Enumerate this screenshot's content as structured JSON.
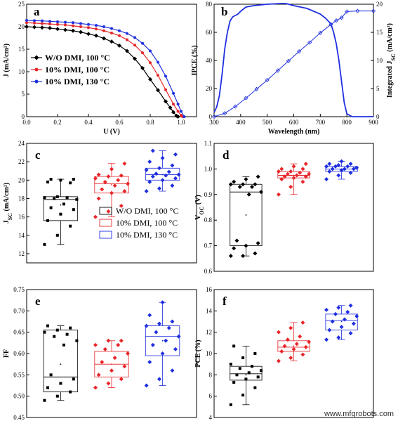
{
  "watermark": "www.mfgrobots.com",
  "colors": {
    "black": "#000000",
    "red": "#e8262a",
    "blue": "#1f2fe0"
  },
  "chart_data": [
    {
      "id": "a",
      "type": "line",
      "panel_label": "a",
      "xlabel": "U (V)",
      "ylabel": "J (mA/cm²)",
      "xlim": [
        0.0,
        1.1
      ],
      "ylim": [
        0,
        25
      ],
      "xticks": [
        "0.0",
        "0.2",
        "0.4",
        "0.6",
        "0.8",
        "1.0"
      ],
      "yticks": [
        "0",
        "5",
        "10",
        "15",
        "20",
        "25"
      ],
      "legend_position": "center-left",
      "series": [
        {
          "name": "W/O DMI, 100 °C",
          "color": "#000000",
          "x": [
            0.0,
            0.05,
            0.1,
            0.15,
            0.2,
            0.25,
            0.3,
            0.35,
            0.4,
            0.45,
            0.5,
            0.55,
            0.6,
            0.65,
            0.7,
            0.75,
            0.8,
            0.85,
            0.9,
            0.93,
            0.95,
            0.97,
            0.98
          ],
          "y": [
            20.0,
            19.9,
            19.8,
            19.7,
            19.5,
            19.3,
            19.1,
            18.8,
            18.4,
            18.0,
            17.4,
            16.7,
            15.8,
            14.6,
            12.9,
            10.8,
            8.3,
            5.9,
            3.4,
            2.0,
            1.0,
            0.2,
            0.0
          ]
        },
        {
          "name": "10% DMI, 100 °C",
          "color": "#e8262a",
          "x": [
            0.0,
            0.05,
            0.1,
            0.15,
            0.2,
            0.25,
            0.3,
            0.35,
            0.4,
            0.45,
            0.5,
            0.55,
            0.6,
            0.65,
            0.7,
            0.75,
            0.8,
            0.85,
            0.9,
            0.95,
            0.98,
            1.0,
            1.01
          ],
          "y": [
            20.9,
            20.8,
            20.7,
            20.6,
            20.5,
            20.4,
            20.2,
            20.0,
            19.8,
            19.5,
            19.1,
            18.6,
            18.0,
            17.1,
            15.9,
            14.2,
            12.0,
            9.2,
            6.0,
            2.8,
            1.2,
            0.3,
            0.0
          ]
        },
        {
          "name": "10% DMI, 130 °C",
          "color": "#1f2fe0",
          "x": [
            0.0,
            0.05,
            0.1,
            0.15,
            0.2,
            0.25,
            0.3,
            0.35,
            0.4,
            0.45,
            0.5,
            0.55,
            0.6,
            0.65,
            0.7,
            0.75,
            0.8,
            0.85,
            0.9,
            0.95,
            0.98,
            1.0,
            1.02
          ],
          "y": [
            21.4,
            21.35,
            21.3,
            21.2,
            21.1,
            21.0,
            20.9,
            20.7,
            20.5,
            20.3,
            20.0,
            19.6,
            19.1,
            18.5,
            17.6,
            16.3,
            14.6,
            12.1,
            9.0,
            5.2,
            2.8,
            1.2,
            0.0
          ]
        }
      ]
    },
    {
      "id": "b",
      "type": "line",
      "panel_label": "b",
      "xlabel": "Wavelength (nm)",
      "ylabel": "IPCE (%)",
      "ylabel_right": "Integrated J_SC (mA/cm²)",
      "xlim": [
        300,
        900
      ],
      "ylim": [
        0,
        80
      ],
      "ylim_right": [
        0,
        20
      ],
      "xticks": [
        "300",
        "400",
        "500",
        "600",
        "700",
        "800",
        "900"
      ],
      "yticks": [
        "0",
        "20",
        "40",
        "60",
        "80"
      ],
      "yticks_right": [
        "0",
        "5",
        "10",
        "15",
        "20"
      ],
      "series": [
        {
          "name": "IPCE",
          "color": "#1f2fe0",
          "x": [
            300,
            310,
            320,
            330,
            340,
            350,
            360,
            370,
            380,
            390,
            400,
            420,
            450,
            500,
            550,
            570,
            600,
            650,
            700,
            720,
            740,
            750,
            760,
            770,
            780,
            790,
            800,
            820,
            850,
            900
          ],
          "y": [
            3,
            7,
            15,
            30,
            48,
            60,
            68,
            71,
            72,
            73,
            75,
            78,
            79,
            80,
            80.5,
            80.5,
            79,
            77,
            73,
            70,
            66,
            60,
            52,
            40,
            25,
            10,
            2,
            0,
            0,
            0
          ]
        },
        {
          "name": "Integrated J_SC",
          "color": "#1f2fe0",
          "axis": "right",
          "marker": "diamond",
          "x": [
            300,
            340,
            380,
            420,
            460,
            500,
            540,
            580,
            620,
            660,
            700,
            740,
            760,
            780,
            800,
            840,
            900
          ],
          "y": [
            0,
            0.6,
            1.8,
            3.3,
            4.9,
            6.5,
            8.2,
            9.9,
            11.6,
            13.2,
            14.9,
            16.4,
            17.1,
            17.6,
            18.7,
            18.8,
            18.8
          ]
        }
      ]
    },
    {
      "id": "c",
      "type": "box",
      "panel_label": "c",
      "ylabel": "J_SC (mA/cm²)",
      "ylim": [
        11,
        24
      ],
      "yticks": [
        "12",
        "14",
        "16",
        "18",
        "20",
        "22",
        "24"
      ],
      "legend": [
        "W/O DMI, 100 °C",
        "10% DMI, 100 °C",
        "10% DMI, 130 °C"
      ],
      "groups": [
        {
          "color": "#000000",
          "q1": 15.6,
          "median": 17.9,
          "q3": 18.2,
          "whisker_low": 13.0,
          "whisker_high": 20.1,
          "mean": 17.3,
          "points": [
            13.0,
            14.0,
            15.0,
            15.6,
            16.3,
            16.8,
            17.0,
            17.4,
            17.9,
            18.0,
            18.1,
            18.1,
            18.2,
            19.7,
            19.8,
            20.0,
            20.1,
            20.1
          ]
        },
        {
          "color": "#e8262a",
          "q1": 18.6,
          "median": 19.6,
          "q3": 20.4,
          "whisker_low": 16.0,
          "whisker_high": 21.8,
          "mean": 19.5,
          "points": [
            16.0,
            16.6,
            17.2,
            18.0,
            18.6,
            18.8,
            19.0,
            19.4,
            19.6,
            19.8,
            20.0,
            20.2,
            20.4,
            20.5,
            20.6,
            21.2,
            21.8
          ]
        },
        {
          "color": "#1f2fe0",
          "q1": 20.0,
          "median": 20.6,
          "q3": 21.3,
          "whisker_low": 18.8,
          "whisker_high": 23.2,
          "mean": 20.6,
          "points": [
            18.8,
            19.1,
            19.4,
            19.8,
            20.0,
            20.2,
            20.4,
            20.5,
            20.6,
            20.7,
            20.9,
            21.1,
            21.3,
            21.6,
            22.0,
            22.4,
            22.8,
            23.2
          ]
        }
      ]
    },
    {
      "id": "d",
      "type": "box",
      "panel_label": "d",
      "ylabel": "V_OC (V)",
      "ylim": [
        0.6,
        1.1
      ],
      "yticks": [
        "0.6",
        "0.7",
        "0.8",
        "0.9",
        "1.0",
        "1.1"
      ],
      "groups": [
        {
          "color": "#000000",
          "q1": 0.7,
          "median": 0.91,
          "q3": 0.94,
          "whisker_low": 0.66,
          "whisker_high": 0.97,
          "mean": 0.82,
          "points": [
            0.66,
            0.66,
            0.67,
            0.69,
            0.7,
            0.71,
            0.72,
            0.9,
            0.91,
            0.93,
            0.93,
            0.94,
            0.94,
            0.94,
            0.95,
            0.96,
            0.97
          ]
        },
        {
          "color": "#e8262a",
          "q1": 0.965,
          "median": 0.975,
          "q3": 0.99,
          "whisker_low": 0.9,
          "whisker_high": 1.02,
          "mean": 0.975,
          "points": [
            0.9,
            0.93,
            0.95,
            0.96,
            0.965,
            0.97,
            0.97,
            0.975,
            0.98,
            0.98,
            0.985,
            0.99,
            0.99,
            1.0,
            1.0,
            1.01,
            1.02
          ]
        },
        {
          "color": "#1f2fe0",
          "q1": 0.99,
          "median": 1.0,
          "q3": 1.01,
          "whisker_low": 0.96,
          "whisker_high": 1.03,
          "mean": 1.0,
          "points": [
            0.96,
            0.975,
            0.985,
            0.99,
            0.995,
            1.0,
            1.0,
            1.0,
            1.005,
            1.01,
            1.01,
            1.01,
            1.015,
            1.02,
            1.02,
            1.03
          ]
        }
      ]
    },
    {
      "id": "e",
      "type": "box",
      "panel_label": "e",
      "ylabel": "FF",
      "ylim": [
        0.45,
        0.75
      ],
      "yticks": [
        "0.45",
        "0.50",
        "0.55",
        "0.60",
        "0.65",
        "0.70",
        "0.75"
      ],
      "groups": [
        {
          "color": "#000000",
          "q1": 0.51,
          "median": 0.545,
          "q3": 0.655,
          "whisker_low": 0.49,
          "whisker_high": 0.665,
          "mean": 0.575,
          "points": [
            0.49,
            0.5,
            0.51,
            0.52,
            0.53,
            0.54,
            0.55,
            0.62,
            0.63,
            0.64,
            0.645,
            0.65,
            0.655,
            0.66,
            0.665
          ]
        },
        {
          "color": "#e8262a",
          "q1": 0.545,
          "median": 0.575,
          "q3": 0.605,
          "whisker_low": 0.52,
          "whisker_high": 0.63,
          "mean": 0.575,
          "points": [
            0.52,
            0.53,
            0.54,
            0.55,
            0.56,
            0.57,
            0.58,
            0.59,
            0.6,
            0.61,
            0.62,
            0.62,
            0.63,
            0.63
          ]
        },
        {
          "color": "#1f2fe0",
          "q1": 0.595,
          "median": 0.64,
          "q3": 0.665,
          "whisker_low": 0.525,
          "whisker_high": 0.72,
          "mean": 0.63,
          "points": [
            0.525,
            0.54,
            0.56,
            0.58,
            0.6,
            0.61,
            0.62,
            0.63,
            0.64,
            0.65,
            0.66,
            0.665,
            0.67,
            0.675,
            0.69,
            0.72
          ]
        }
      ]
    },
    {
      "id": "f",
      "type": "box",
      "panel_label": "f",
      "ylabel": "PCE (%)",
      "ylim": [
        4,
        16
      ],
      "yticks": [
        "4",
        "6",
        "8",
        "10",
        "12",
        "14",
        "16"
      ],
      "groups": [
        {
          "color": "#000000",
          "q1": 7.5,
          "median": 8.1,
          "q3": 8.8,
          "whisker_low": 5.2,
          "whisker_high": 10.7,
          "mean": 8.0,
          "points": [
            5.2,
            6.1,
            6.8,
            7.3,
            7.6,
            7.8,
            8.0,
            8.2,
            8.4,
            8.6,
            8.8,
            9.0,
            9.6,
            10.0,
            10.7
          ]
        },
        {
          "color": "#e8262a",
          "q1": 10.2,
          "median": 10.6,
          "q3": 11.2,
          "whisker_low": 9.3,
          "whisker_high": 12.9,
          "mean": 10.7,
          "points": [
            9.3,
            9.6,
            9.9,
            10.2,
            10.4,
            10.6,
            10.7,
            10.9,
            11.1,
            11.3,
            11.6,
            12.0,
            12.4,
            12.9
          ]
        },
        {
          "color": "#1f2fe0",
          "q1": 12.2,
          "median": 13.1,
          "q3": 13.7,
          "whisker_low": 11.3,
          "whisker_high": 14.5,
          "mean": 13.0,
          "points": [
            11.3,
            11.5,
            11.9,
            12.2,
            12.5,
            12.8,
            13.0,
            13.2,
            13.5,
            13.7,
            13.9,
            14.1,
            14.3,
            14.5
          ]
        }
      ]
    }
  ]
}
